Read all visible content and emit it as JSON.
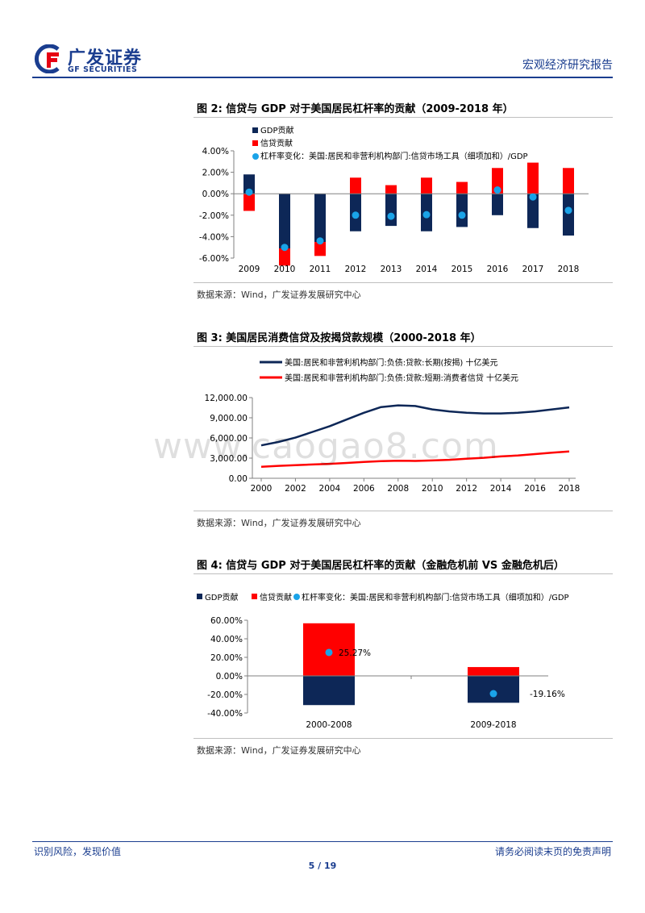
{
  "header": {
    "logo_cn": "广发证券",
    "logo_en": "GF SECURITIES",
    "report_type": "宏观经济研究报告"
  },
  "colors": {
    "navy": "#0d2757",
    "red": "#ff0000",
    "cyan": "#1aa3e8",
    "brand": "#1a3d8f"
  },
  "watermark": "www.caogao8.com",
  "figures": [
    {
      "title": "图 2:  信贷与 GDP 对于美国居民杠杆率的贡献（2009-2018 年）",
      "source": "数据来源：Wind，广发证券发展研究中心"
    },
    {
      "title": "图 3:  美国居民消费信贷及按揭贷款规模（2000-2018 年）",
      "source": "数据来源：Wind，广发证券发展研究中心"
    },
    {
      "title": "图 4:  信贷与 GDP 对于美国居民杠杆率的贡献（金融危机前 VS 金融危机后）",
      "source": "数据来源：Wind，广发证券发展研究中心"
    }
  ],
  "chart_data": [
    {
      "type": "bar",
      "stacked": true,
      "categories": [
        "2009",
        "2010",
        "2011",
        "2012",
        "2013",
        "2014",
        "2015",
        "2016",
        "2017",
        "2018"
      ],
      "series": [
        {
          "name": "GDP贡献",
          "kind": "bar",
          "color": "#0d2757",
          "values": [
            1.8,
            -5.1,
            -4.5,
            -3.5,
            -3.0,
            -3.5,
            -3.1,
            -2.0,
            -3.2,
            -3.9
          ]
        },
        {
          "name": "信贷贡献",
          "kind": "bar",
          "color": "#ff0000",
          "values": [
            -1.6,
            -1.6,
            -1.3,
            1.5,
            0.8,
            1.5,
            1.1,
            2.4,
            2.9,
            2.4
          ]
        },
        {
          "name": "杠杆率变化：美国:居民和非营利机构部门:信贷市场工具（细项加和）/GDP",
          "kind": "dot",
          "color": "#1aa3e8",
          "values": [
            0.15,
            -5.0,
            -4.4,
            -2.0,
            -2.1,
            -1.95,
            -2.0,
            0.35,
            -0.3,
            -1.55
          ]
        }
      ],
      "yticks": [
        "4.00%",
        "2.00%",
        "0.00%",
        "-2.00%",
        "-4.00%",
        "-6.00%"
      ],
      "ylim": [
        -6,
        4
      ],
      "legend_position": "top-left"
    },
    {
      "type": "line",
      "x": [
        2000,
        2001,
        2002,
        2003,
        2004,
        2005,
        2006,
        2007,
        2008,
        2009,
        2010,
        2011,
        2012,
        2013,
        2014,
        2015,
        2016,
        2017,
        2018
      ],
      "series": [
        {
          "name": "美国:居民和非营利机构部门:负债:贷款:长期(按揭) 十亿美元",
          "color": "#0d2757",
          "values": [
            4900,
            5400,
            6050,
            6900,
            7750,
            8750,
            9750,
            10600,
            10850,
            10750,
            10250,
            9950,
            9750,
            9650,
            9650,
            9750,
            9950,
            10250,
            10550
          ]
        },
        {
          "name": "美国:居民和非营利机构部门:负债:贷款:短期:消费者信贷 十亿美元",
          "color": "#ff0000",
          "values": [
            1700,
            1850,
            1950,
            2050,
            2150,
            2280,
            2420,
            2550,
            2620,
            2580,
            2650,
            2750,
            2900,
            3050,
            3250,
            3380,
            3600,
            3800,
            4000
          ]
        }
      ],
      "yticks": [
        "12,000.00",
        "9,000.00",
        "6,000.00",
        "3,000.00",
        "0.00"
      ],
      "xticks": [
        "2000",
        "2002",
        "2004",
        "2006",
        "2008",
        "2010",
        "2012",
        "2014",
        "2016",
        "2018"
      ],
      "ylim": [
        0,
        12000
      ],
      "legend_position": "top-left"
    },
    {
      "type": "bar",
      "stacked": true,
      "categories": [
        "2000-2008",
        "2009-2018"
      ],
      "series": [
        {
          "name": "GDP贡献",
          "kind": "bar",
          "color": "#0d2757",
          "values": [
            -31.5,
            -29.0
          ]
        },
        {
          "name": "信贷贡献",
          "kind": "bar",
          "color": "#ff0000",
          "values": [
            56.7,
            9.5
          ]
        },
        {
          "name": "杠杆率变化：美国:居民和非营利机构部门:信贷市场工具（细项加和）/GDP",
          "kind": "dot",
          "color": "#1aa3e8",
          "values": [
            25.27,
            -19.16
          ],
          "labels": [
            "25.27%",
            "-19.16%"
          ]
        }
      ],
      "yticks": [
        "60.00%",
        "40.00%",
        "20.00%",
        "0.00%",
        "-20.00%",
        "-40.00%"
      ],
      "ylim": [
        -40,
        60
      ],
      "legend_position": "top"
    }
  ],
  "footer": {
    "left": "识别风险，发现价值",
    "right": "请务必阅读末页的免责声明",
    "page": "5 / 19"
  }
}
